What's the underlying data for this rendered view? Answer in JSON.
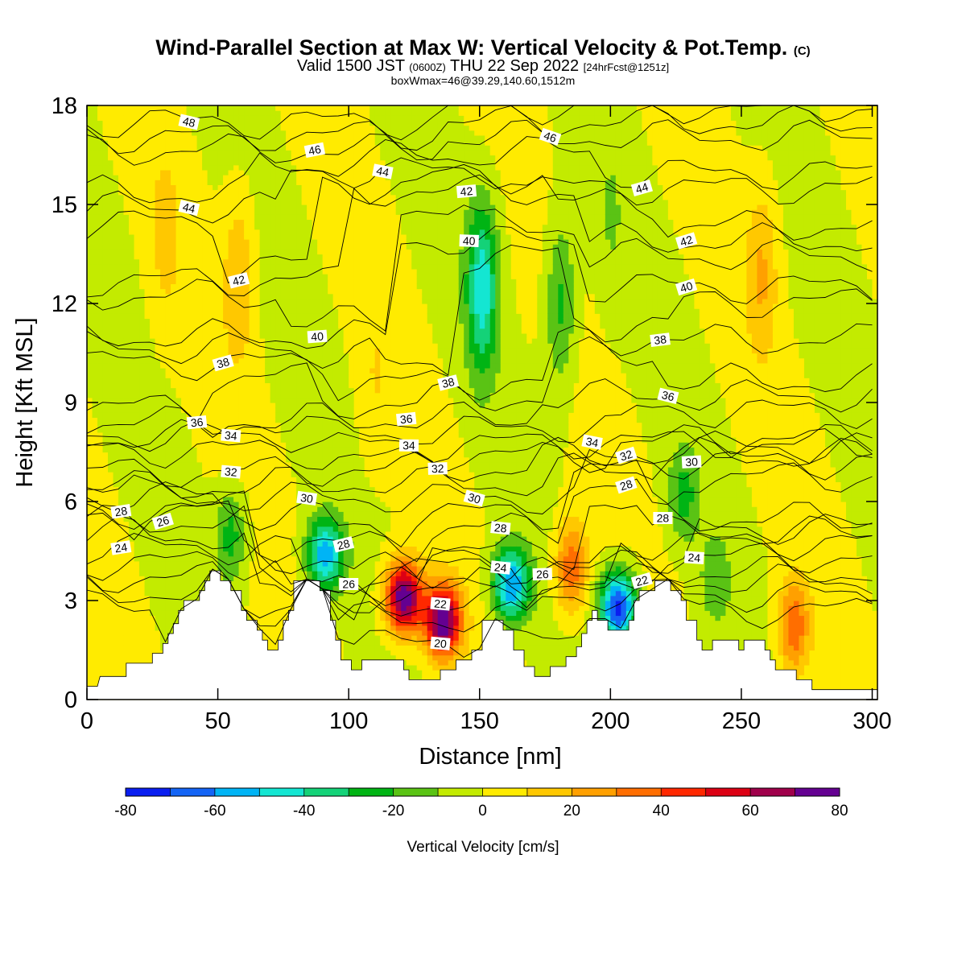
{
  "title": {
    "main": "Wind-Parallel Section at Max W: Vertical Velocity & Pot.Temp.",
    "main_tag": "(C)",
    "valid_a": "Valid 1500 JST",
    "valid_b": "(0600Z)",
    "valid_c": "THU 22 Sep 2022",
    "valid_d": "[24hrFcst@1251z]",
    "box": "boxWmax=46@39.29,140.60,1512m"
  },
  "chart_data": {
    "type": "heatmap",
    "xlabel": "Distance [nm]",
    "ylabel": "Height [Kft MSL]",
    "xlim": [
      0,
      302
    ],
    "ylim": [
      0,
      18
    ],
    "xticks": [
      0,
      50,
      100,
      150,
      200,
      250,
      300
    ],
    "yticks": [
      0,
      3,
      6,
      9,
      12,
      15,
      18
    ],
    "colorbar": {
      "label": "Vertical Velocity [cm/s]",
      "ticks": [
        -80,
        -60,
        -40,
        -20,
        0,
        20,
        40,
        60,
        80
      ],
      "bins": [
        {
          "from": -80,
          "to": -70,
          "color": "#0a1ef0"
        },
        {
          "from": -70,
          "to": -60,
          "color": "#1464f5"
        },
        {
          "from": -60,
          "to": -50,
          "color": "#00b4f5"
        },
        {
          "from": -50,
          "to": -40,
          "color": "#14e6d2"
        },
        {
          "from": -40,
          "to": -30,
          "color": "#14d278"
        },
        {
          "from": -30,
          "to": -20,
          "color": "#00b414"
        },
        {
          "from": -20,
          "to": -10,
          "color": "#5ac314"
        },
        {
          "from": -10,
          "to": 0,
          "color": "#c3eb00"
        },
        {
          "from": 0,
          "to": 10,
          "color": "#ffeb00"
        },
        {
          "from": 10,
          "to": 20,
          "color": "#ffc800"
        },
        {
          "from": 20,
          "to": 30,
          "color": "#ffa000"
        },
        {
          "from": 30,
          "to": 40,
          "color": "#ff6e00"
        },
        {
          "from": 40,
          "to": 50,
          "color": "#ff2800"
        },
        {
          "from": 50,
          "to": 60,
          "color": "#dc0014"
        },
        {
          "from": 60,
          "to": 70,
          "color": "#a0004b"
        },
        {
          "from": 70,
          "to": 80,
          "color": "#640091"
        }
      ]
    },
    "velocity_cells": [
      {
        "x": 121,
        "y": 3.1,
        "w": 80
      },
      {
        "x": 136,
        "y": 2.4,
        "w": 78
      },
      {
        "x": 185,
        "y": 4.0,
        "w": 40
      },
      {
        "x": 270,
        "y": 2.2,
        "w": 38
      },
      {
        "x": 203,
        "y": 2.8,
        "w": -75
      },
      {
        "x": 162,
        "y": 3.5,
        "w": -60
      },
      {
        "x": 91,
        "y": 4.4,
        "w": -55
      },
      {
        "x": 151,
        "y": 12.5,
        "w": -45
      },
      {
        "x": 181,
        "y": 12.0,
        "w": -25
      },
      {
        "x": 55,
        "y": 5.0,
        "w": -25
      },
      {
        "x": 228,
        "y": 6.2,
        "w": -22
      },
      {
        "x": 240,
        "y": 3.6,
        "w": -15
      },
      {
        "x": 58,
        "y": 12.8,
        "w": 20
      },
      {
        "x": 258,
        "y": 13.0,
        "w": 20
      },
      {
        "x": 30,
        "y": 14.0,
        "w": 12
      },
      {
        "x": 110,
        "y": 9.5,
        "w": 8
      },
      {
        "x": 200,
        "y": 14.5,
        "w": -8
      }
    ],
    "terrain": [
      [
        0,
        0.4
      ],
      [
        4,
        0.4
      ],
      [
        5,
        0.7
      ],
      [
        15,
        0.7
      ],
      [
        15,
        1.1
      ],
      [
        25,
        1.1
      ],
      [
        25,
        1.4
      ],
      [
        29,
        1.4
      ],
      [
        29,
        1.7
      ],
      [
        31,
        1.7
      ],
      [
        31,
        2.0
      ],
      [
        33,
        2.0
      ],
      [
        33,
        2.3
      ],
      [
        35,
        2.3
      ],
      [
        35,
        2.7
      ],
      [
        37,
        2.7
      ],
      [
        37,
        3.0
      ],
      [
        43,
        3.0
      ],
      [
        43,
        3.3
      ],
      [
        45,
        3.3
      ],
      [
        45,
        3.6
      ],
      [
        47,
        3.6
      ],
      [
        47,
        3.9
      ],
      [
        51,
        3.9
      ],
      [
        51,
        3.6
      ],
      [
        55,
        3.6
      ],
      [
        55,
        3.3
      ],
      [
        59,
        3.3
      ],
      [
        59,
        2.7
      ],
      [
        61,
        2.7
      ],
      [
        61,
        2.4
      ],
      [
        65,
        2.4
      ],
      [
        65,
        2.1
      ],
      [
        67,
        2.1
      ],
      [
        67,
        1.8
      ],
      [
        69,
        1.8
      ],
      [
        69,
        1.5
      ],
      [
        73,
        1.5
      ],
      [
        73,
        1.8
      ],
      [
        75,
        1.8
      ],
      [
        75,
        2.4
      ],
      [
        77,
        2.4
      ],
      [
        77,
        2.7
      ],
      [
        79,
        2.7
      ],
      [
        79,
        3.6
      ],
      [
        89,
        3.6
      ],
      [
        89,
        3.3
      ],
      [
        93,
        3.3
      ],
      [
        93,
        2.4
      ],
      [
        95,
        2.4
      ],
      [
        95,
        1.8
      ],
      [
        97,
        1.8
      ],
      [
        97,
        1.2
      ],
      [
        101,
        1.2
      ],
      [
        101,
        0.9
      ],
      [
        105,
        0.9
      ],
      [
        105,
        1.2
      ],
      [
        121,
        1.2
      ],
      [
        121,
        0.9
      ],
      [
        123,
        0.9
      ],
      [
        123,
        0.6
      ],
      [
        135,
        0.6
      ],
      [
        135,
        0.9
      ],
      [
        141,
        0.9
      ],
      [
        141,
        1.2
      ],
      [
        147,
        1.2
      ],
      [
        147,
        1.5
      ],
      [
        151,
        1.5
      ],
      [
        151,
        2.4
      ],
      [
        159,
        2.4
      ],
      [
        159,
        2.1
      ],
      [
        163,
        2.1
      ],
      [
        163,
        1.5
      ],
      [
        167,
        1.5
      ],
      [
        167,
        1.0
      ],
      [
        171,
        1.0
      ],
      [
        171,
        0.7
      ],
      [
        177,
        0.7
      ],
      [
        177,
        1.0
      ],
      [
        183,
        1.0
      ],
      [
        183,
        1.3
      ],
      [
        187,
        1.3
      ],
      [
        187,
        1.6
      ],
      [
        189,
        1.6
      ],
      [
        189,
        2.0
      ],
      [
        191,
        2.0
      ],
      [
        191,
        2.4
      ],
      [
        193,
        2.4
      ],
      [
        193,
        2.7
      ],
      [
        195,
        2.7
      ],
      [
        195,
        2.4
      ],
      [
        199,
        2.4
      ],
      [
        199,
        2.1
      ],
      [
        207,
        2.1
      ],
      [
        207,
        2.4
      ],
      [
        209,
        2.4
      ],
      [
        209,
        3.0
      ],
      [
        211,
        3.0
      ],
      [
        211,
        3.3
      ],
      [
        217,
        3.3
      ],
      [
        217,
        3.6
      ],
      [
        223,
        3.6
      ],
      [
        223,
        3.3
      ],
      [
        227,
        3.3
      ],
      [
        227,
        3.0
      ],
      [
        229,
        3.0
      ],
      [
        229,
        2.4
      ],
      [
        233,
        2.4
      ],
      [
        233,
        1.8
      ],
      [
        235,
        1.8
      ],
      [
        235,
        1.5
      ],
      [
        239,
        1.5
      ],
      [
        239,
        1.8
      ],
      [
        249,
        1.8
      ],
      [
        249,
        1.5
      ],
      [
        251,
        1.5
      ],
      [
        251,
        1.8
      ],
      [
        259,
        1.8
      ],
      [
        259,
        1.5
      ],
      [
        261,
        1.5
      ],
      [
        261,
        1.2
      ],
      [
        263,
        1.2
      ],
      [
        263,
        0.9
      ],
      [
        271,
        0.9
      ],
      [
        271,
        0.6
      ],
      [
        277,
        0.6
      ],
      [
        277,
        0.3
      ],
      [
        302,
        0.3
      ]
    ],
    "theta_labels": [
      {
        "text": "48",
        "x": 39,
        "y": 17.5
      },
      {
        "text": "46",
        "x": 87,
        "y": 16.65
      },
      {
        "text": "46",
        "x": 177,
        "y": 17.05
      },
      {
        "text": "44",
        "x": 113,
        "y": 16.0
      },
      {
        "text": "44",
        "x": 39,
        "y": 14.9
      },
      {
        "text": "44",
        "x": 212,
        "y": 15.5
      },
      {
        "text": "42",
        "x": 145,
        "y": 15.4
      },
      {
        "text": "42",
        "x": 58,
        "y": 12.7
      },
      {
        "text": "42",
        "x": 229,
        "y": 13.9
      },
      {
        "text": "40",
        "x": 146,
        "y": 13.9
      },
      {
        "text": "40",
        "x": 229,
        "y": 12.5
      },
      {
        "text": "40",
        "x": 88,
        "y": 11.0
      },
      {
        "text": "38",
        "x": 52,
        "y": 10.2
      },
      {
        "text": "38",
        "x": 138,
        "y": 9.6
      },
      {
        "text": "38",
        "x": 219,
        "y": 10.9
      },
      {
        "text": "36",
        "x": 42,
        "y": 8.4
      },
      {
        "text": "36",
        "x": 122,
        "y": 8.5
      },
      {
        "text": "36",
        "x": 222,
        "y": 9.2
      },
      {
        "text": "34",
        "x": 55,
        "y": 8.0
      },
      {
        "text": "34",
        "x": 123,
        "y": 7.7
      },
      {
        "text": "34",
        "x": 193,
        "y": 7.8
      },
      {
        "text": "32",
        "x": 55,
        "y": 6.9
      },
      {
        "text": "32",
        "x": 134,
        "y": 7.0
      },
      {
        "text": "32",
        "x": 206,
        "y": 7.4
      },
      {
        "text": "30",
        "x": 84,
        "y": 6.1
      },
      {
        "text": "30",
        "x": 148,
        "y": 6.1
      },
      {
        "text": "30",
        "x": 231,
        "y": 7.2
      },
      {
        "text": "28",
        "x": 13,
        "y": 5.7
      },
      {
        "text": "28",
        "x": 98,
        "y": 4.7
      },
      {
        "text": "28",
        "x": 158,
        "y": 5.2
      },
      {
        "text": "28",
        "x": 206,
        "y": 6.5
      },
      {
        "text": "28",
        "x": 220,
        "y": 5.5
      },
      {
        "text": "26",
        "x": 29,
        "y": 5.4
      },
      {
        "text": "26",
        "x": 100,
        "y": 3.5
      },
      {
        "text": "26",
        "x": 174,
        "y": 3.8
      },
      {
        "text": "24",
        "x": 13,
        "y": 4.6
      },
      {
        "text": "24",
        "x": 158,
        "y": 4.0
      },
      {
        "text": "24",
        "x": 232,
        "y": 4.3
      },
      {
        "text": "22",
        "x": 135,
        "y": 2.9
      },
      {
        "text": "22",
        "x": 212,
        "y": 3.6
      },
      {
        "text": "20",
        "x": 135,
        "y": 1.7
      }
    ]
  }
}
